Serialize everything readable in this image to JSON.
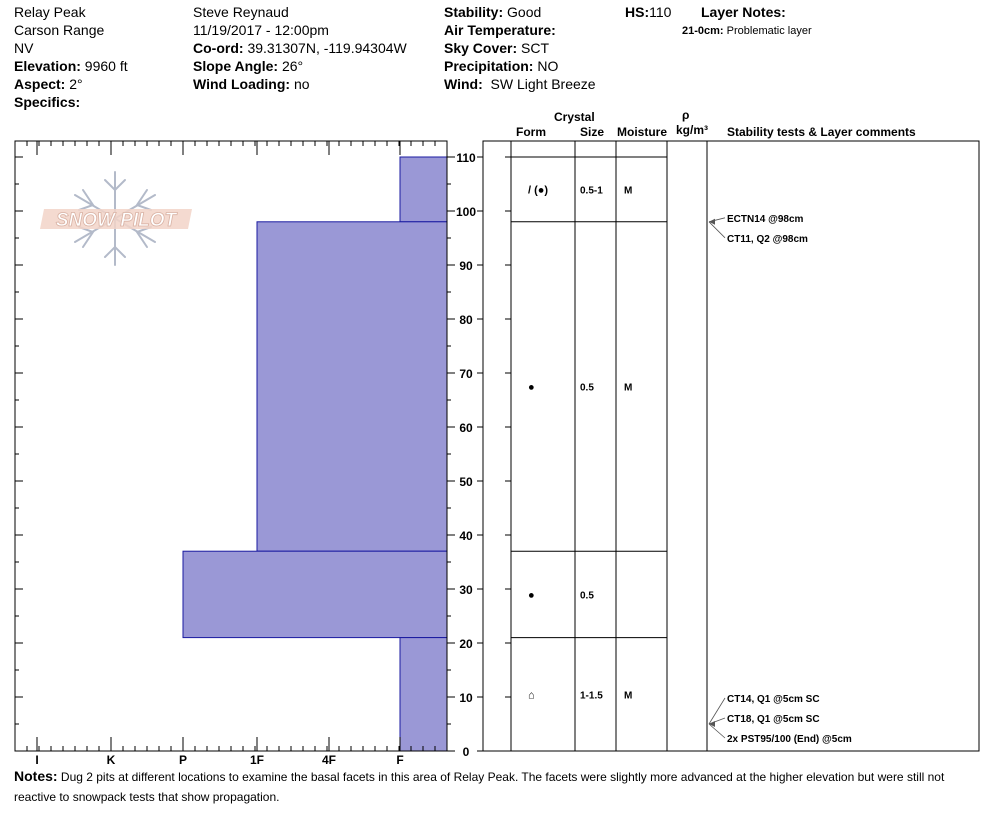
{
  "header": {
    "location": "Relay Peak",
    "range": "Carson Range",
    "state": "NV",
    "elevation_label": "Elevation:",
    "elevation_value": "9960 ft",
    "aspect_label": "Aspect:",
    "aspect_value": "2°",
    "specifics_label": "Specifics:",
    "observer": "Steve Reynaud",
    "datetime": "11/19/2017 - 12:00pm",
    "coord_label": "Co-ord:",
    "coord_value": "39.31307N, -119.94304W",
    "slope_label": "Slope Angle:",
    "slope_value": "26°",
    "wind_loading_label": "Wind Loading:",
    "wind_loading_value": "no",
    "stability_label": "Stability:",
    "stability_value": "Good",
    "air_temp_label": "Air Temperature:",
    "sky_label": "Sky Cover:",
    "sky_value": "SCT",
    "precip_label": "Precipitation:",
    "precip_value": "NO",
    "wind_label": "Wind:",
    "wind_value": "SW Light Breeze",
    "hs_label": "HS:",
    "hs_value": "110",
    "layer_notes_label": "Layer Notes:",
    "layer_note_depth": "21-0cm:",
    "layer_note_text": "Problematic layer"
  },
  "logo_text": "SNOW PILOT",
  "columns": {
    "crystal": "Crystal",
    "form": "Form",
    "size": "Size",
    "moisture": "Moisture",
    "rho": "ρ",
    "density_unit": "kg/m³",
    "stability": "Stability tests & Layer comments"
  },
  "notes": {
    "label": "Notes:",
    "text": "Dug 2 pits at different locations to examine the basal facets in this area of Relay Peak.  The facets were slightly more advanced at the higher elevation but were still not reactive to snowpack tests that show propagation."
  },
  "colors": {
    "hardness_fill": "#9a98d6",
    "hardness_stroke": "#1a1aa0"
  },
  "chart_data": {
    "type": "bar",
    "title": "",
    "ylabel": "",
    "ylim": [
      0,
      110
    ],
    "y_ticks": [
      0,
      10,
      20,
      30,
      40,
      50,
      60,
      70,
      80,
      90,
      100,
      110
    ],
    "hardness_scale": [
      "I",
      "K",
      "P",
      "1F",
      "4F",
      "F"
    ],
    "hardness_profile": [
      {
        "bottom": 98,
        "top": 110,
        "hardness": "F"
      },
      {
        "bottom": 37,
        "top": 98,
        "hardness": "1F"
      },
      {
        "bottom": 21,
        "top": 37,
        "hardness": "P"
      },
      {
        "bottom": 0,
        "top": 21,
        "hardness": "F"
      }
    ],
    "layers": [
      {
        "bottom": 98,
        "top": 110,
        "form": "/ (●)",
        "size": "0.5-1",
        "moisture": "M"
      },
      {
        "bottom": 37,
        "top": 98,
        "form": "●",
        "size": "0.5",
        "moisture": "M"
      },
      {
        "bottom": 21,
        "top": 37,
        "form": "●",
        "size": "0.5",
        "moisture": ""
      },
      {
        "bottom": 0,
        "top": 21,
        "form": "⌂",
        "size": "1-1.5",
        "moisture": "M"
      }
    ],
    "tests": [
      {
        "depth": 98,
        "label": "ECTN14 @98cm"
      },
      {
        "depth": 98,
        "label": "CT11, Q2 @98cm"
      },
      {
        "depth": 5,
        "label": "CT14, Q1 @5cm SC"
      },
      {
        "depth": 5,
        "label": "CT18, Q1 @5cm SC"
      },
      {
        "depth": 5,
        "label": "2x PST95/100 (End) @5cm"
      }
    ]
  }
}
